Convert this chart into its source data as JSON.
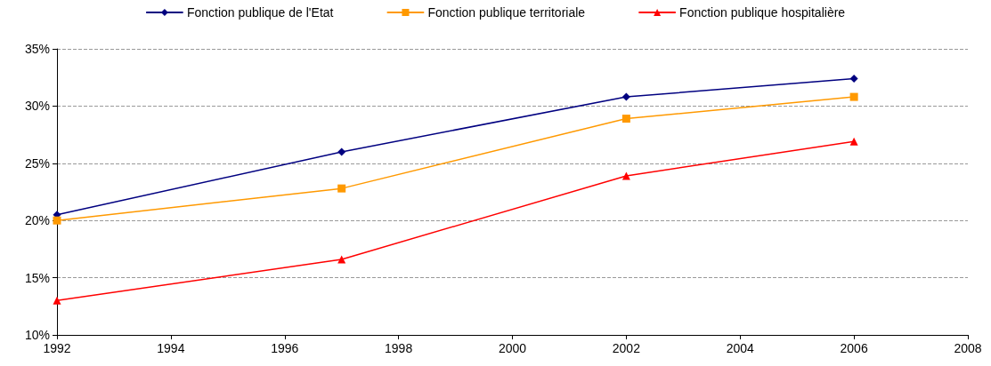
{
  "chart_data": {
    "type": "line",
    "x": [
      1992,
      1997,
      2002,
      2006
    ],
    "series": [
      {
        "name": "Fonction publique de l'Etat",
        "color": "#000080",
        "marker": "diamond",
        "values": [
          20.5,
          26.0,
          30.8,
          32.4
        ]
      },
      {
        "name": "Fonction publique territoriale",
        "color": "#ff9900",
        "marker": "square",
        "values": [
          20.0,
          22.8,
          28.9,
          30.8
        ]
      },
      {
        "name": "Fonction publique hospitalière",
        "color": "#ff0000",
        "marker": "triangle",
        "values": [
          13.0,
          16.6,
          23.9,
          26.9
        ]
      }
    ],
    "xlim": [
      1992,
      2008
    ],
    "xticks": [
      1992,
      1994,
      1996,
      1998,
      2000,
      2002,
      2004,
      2006,
      2008
    ],
    "ylim": [
      10,
      35
    ],
    "yticks": [
      {
        "value": 10,
        "label": "10%"
      },
      {
        "value": 15,
        "label": "15%"
      },
      {
        "value": 20,
        "label": "20%"
      },
      {
        "value": 25,
        "label": "25%"
      },
      {
        "value": 30,
        "label": "30%"
      },
      {
        "value": 35,
        "label": "35%"
      }
    ],
    "grid": "y",
    "legend": "top",
    "line_style": "solid"
  }
}
